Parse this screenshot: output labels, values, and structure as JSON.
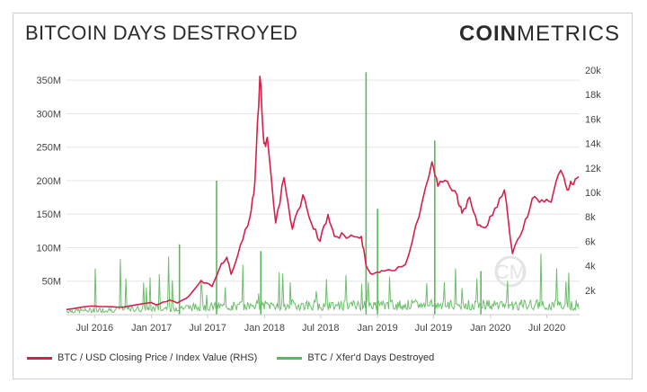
{
  "header": {
    "title": "BITCOIN DAYS DESTROYED",
    "logo_bold": "COIN",
    "logo_light": "METRICS"
  },
  "watermark": "CM",
  "chart_data": {
    "type": "line",
    "title": "BITCOIN DAYS DESTROYED",
    "grid": true,
    "legend_position": "bottom-left",
    "x_ticks": [
      "Jul 2016",
      "Jan 2017",
      "Jul 2017",
      "Jan 2018",
      "Jul 2018",
      "Jan 2019",
      "Jul 2019",
      "Jan 2020",
      "Jul 2020"
    ],
    "x_range": [
      "2016-04-01",
      "2020-10-15"
    ],
    "y_left": {
      "ticks": [
        "50M",
        "100M",
        "150M",
        "200M",
        "250M",
        "300M",
        "350M"
      ],
      "tick_values": [
        50,
        100,
        150,
        200,
        250,
        300,
        350
      ],
      "range": [
        0,
        365
      ],
      "unit": "M"
    },
    "y_right": {
      "ticks": [
        "2k",
        "4k",
        "6k",
        "8k",
        "10k",
        "12k",
        "14k",
        "16k",
        "18k",
        "20k"
      ],
      "tick_values": [
        2000,
        4000,
        6000,
        8000,
        10000,
        12000,
        14000,
        16000,
        18000,
        20000
      ],
      "range": [
        0,
        20000
      ]
    },
    "series": [
      {
        "name": "BTC / USD Closing Price / Index Value (RHS)",
        "axis": "right",
        "color": "#d6204c",
        "x": [
          "2016-04-01",
          "2016-06-15",
          "2016-07-15",
          "2016-10-01",
          "2017-01-01",
          "2017-01-15",
          "2017-03-01",
          "2017-03-25",
          "2017-05-01",
          "2017-06-10",
          "2017-07-15",
          "2017-08-15",
          "2017-09-01",
          "2017-09-15",
          "2017-10-15",
          "2017-11-15",
          "2017-12-01",
          "2017-12-17",
          "2017-12-30",
          "2018-01-10",
          "2018-02-06",
          "2018-03-05",
          "2018-04-01",
          "2018-05-05",
          "2018-06-01",
          "2018-06-29",
          "2018-07-25",
          "2018-08-15",
          "2018-09-15",
          "2018-10-15",
          "2018-11-10",
          "2018-11-25",
          "2018-12-15",
          "2019-01-15",
          "2019-02-15",
          "2019-04-01",
          "2019-05-15",
          "2019-06-26",
          "2019-07-15",
          "2019-08-15",
          "2019-09-15",
          "2019-10-01",
          "2019-10-26",
          "2019-11-20",
          "2019-12-15",
          "2020-01-15",
          "2020-02-15",
          "2020-03-12",
          "2020-04-15",
          "2020-05-15",
          "2020-06-15",
          "2020-07-15",
          "2020-08-15",
          "2020-09-05",
          "2020-09-20",
          "2020-10-12"
        ],
        "values": [
          420,
          700,
          660,
          610,
          1000,
          800,
          1200,
          950,
          1500,
          2800,
          2300,
          4200,
          4700,
          3300,
          5700,
          8000,
          10900,
          19500,
          14000,
          14500,
          7500,
          11200,
          7000,
          9800,
          7500,
          6000,
          8200,
          6400,
          6500,
          6400,
          6400,
          4000,
          3300,
          3600,
          3600,
          4100,
          8000,
          12500,
          10500,
          10900,
          9800,
          8300,
          9600,
          7300,
          7100,
          8700,
          10200,
          5000,
          7000,
          9500,
          9400,
          9200,
          11800,
          10200,
          10700,
          11300
        ]
      },
      {
        "name": "BTC / Xfer'd Days Destroyed",
        "axis": "left",
        "color": "#5cb85c",
        "notable_spikes": [
          {
            "x": "2017-04-01",
            "value": 105
          },
          {
            "x": "2017-07-30",
            "value": 200
          },
          {
            "x": "2017-12-20",
            "value": 95
          },
          {
            "x": "2018-11-25",
            "value": 362
          },
          {
            "x": "2019-01-01",
            "value": 158
          },
          {
            "x": "2019-07-05",
            "value": 260
          },
          {
            "x": "2019-12-01",
            "value": 65
          }
        ]
      }
    ]
  }
}
